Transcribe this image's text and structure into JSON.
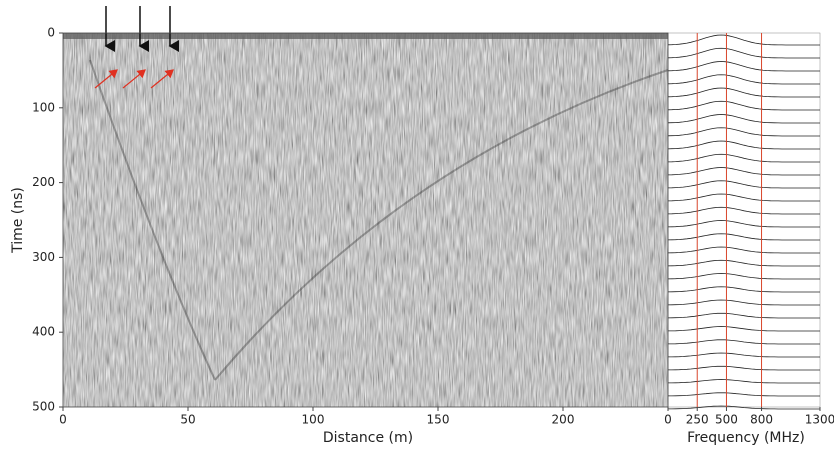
{
  "chart_data": [
    {
      "type": "image",
      "xlabel": "Distance (m)",
      "ylabel": "Time (ns)",
      "xlim": [
        0,
        242
      ],
      "ylim": [
        500,
        0
      ],
      "xticks": [
        0,
        50,
        100,
        150,
        200
      ],
      "yticks": [
        0,
        100,
        200,
        300,
        400,
        500
      ]
    },
    {
      "type": "spectra",
      "xlabel": "Frequency (MHz)",
      "xlim": [
        0,
        1300
      ],
      "xticks": [
        0,
        250,
        500,
        800,
        1300
      ],
      "reference_lines": [
        250,
        500,
        800
      ],
      "reference_color": "#d9452b"
    }
  ]
}
